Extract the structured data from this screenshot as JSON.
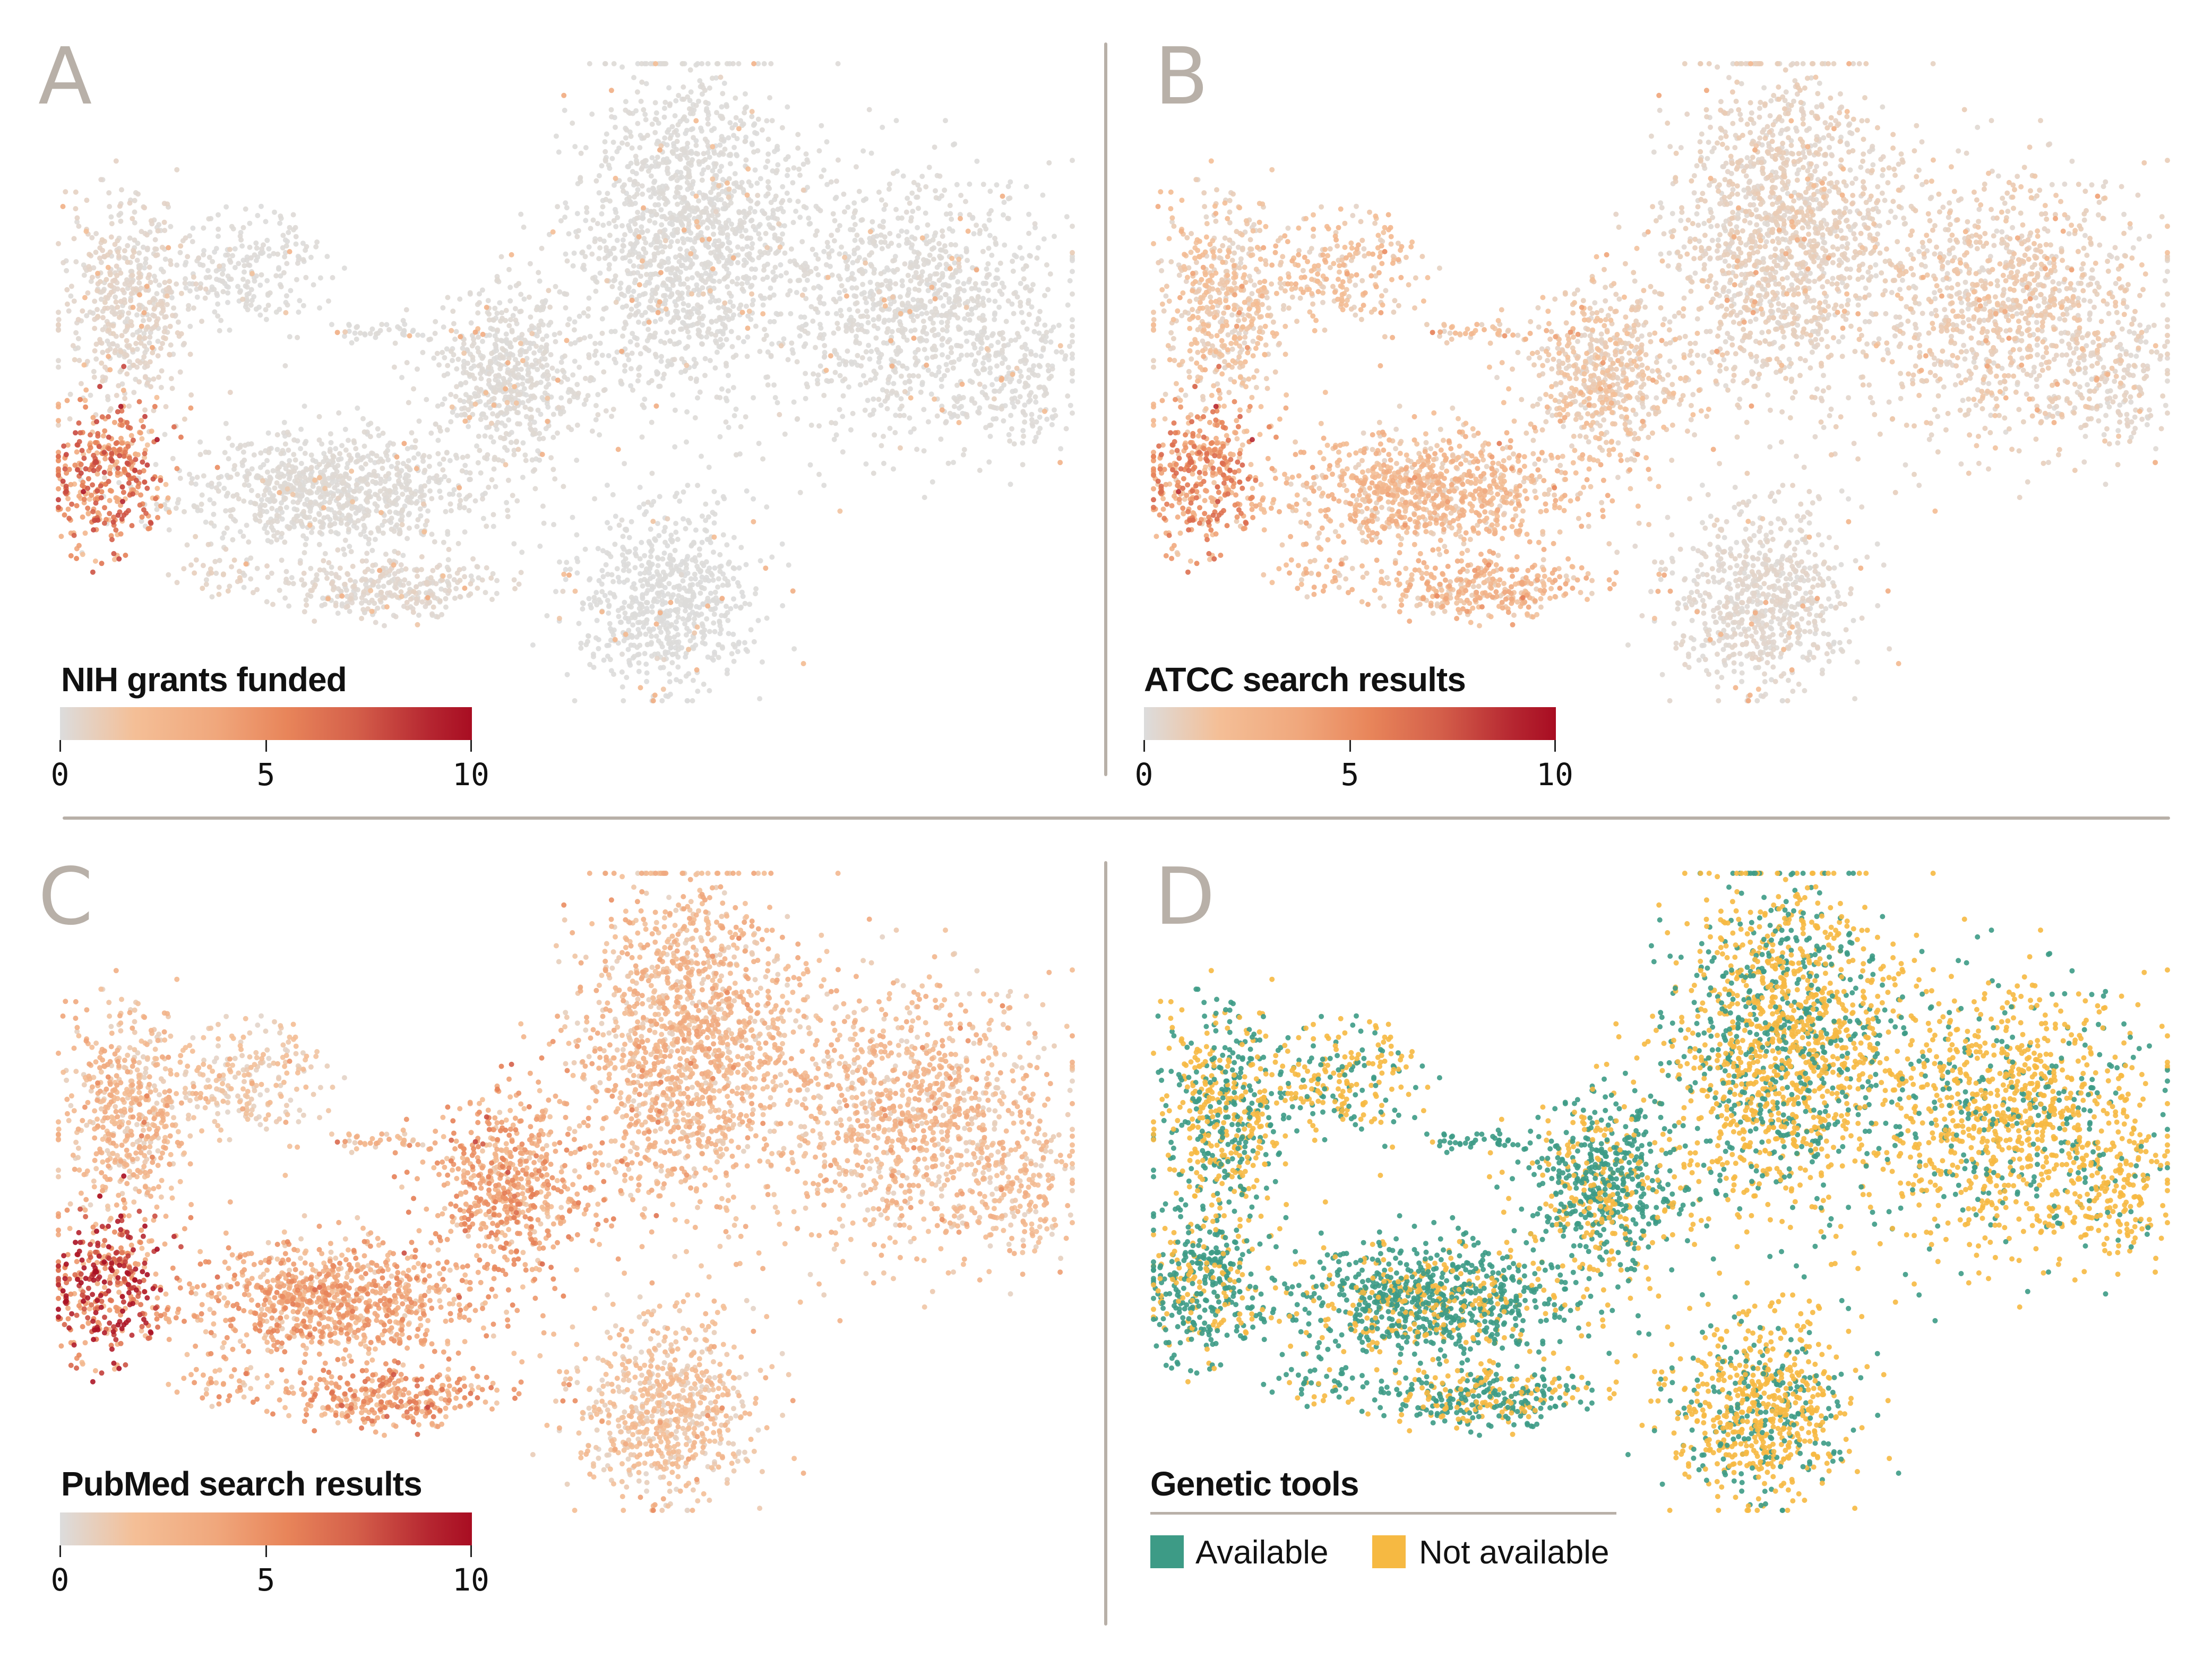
{
  "chart_data": {
    "type": "scatter",
    "description_kind": "embedding-scatter-4-panels",
    "embedding": {
      "x_range": [
        0,
        100
      ],
      "y_range": [
        0,
        100
      ],
      "clusters": [
        {
          "name": "left-top",
          "cx": 7,
          "cy": 38,
          "sx": 3.2,
          "sy": 8.5,
          "n": 520
        },
        {
          "name": "left-arm",
          "cx": 19,
          "cy": 33,
          "sx": 4.0,
          "sy": 4.5,
          "n": 220
        },
        {
          "name": "left-pocket",
          "cx": 5,
          "cy": 64,
          "sx": 2.8,
          "sy": 5.5,
          "n": 360
        },
        {
          "name": "mid-band",
          "cx": 27,
          "cy": 67,
          "sx": 7.5,
          "sy": 4.2,
          "n": 900
        },
        {
          "name": "low-band",
          "cx": 33,
          "cy": 82,
          "sx": 5.5,
          "sy": 2.3,
          "n": 330
        },
        {
          "name": "low-dots",
          "cx": 16,
          "cy": 80,
          "sx": 2.5,
          "sy": 2.0,
          "n": 40
        },
        {
          "name": "mid-cluster",
          "cx": 45,
          "cy": 49,
          "sx": 4.0,
          "sy": 7.0,
          "n": 620
        },
        {
          "name": "bridge",
          "cx": 32,
          "cy": 42,
          "sx": 3.0,
          "sy": 0.8,
          "n": 40
        },
        {
          "name": "big-upper",
          "cx": 62,
          "cy": 28,
          "sx": 5.5,
          "sy": 13.0,
          "n": 1500
        },
        {
          "name": "right",
          "cx": 84,
          "cy": 38,
          "sx": 7.0,
          "sy": 10.0,
          "n": 1100
        },
        {
          "name": "right-tail",
          "cx": 95,
          "cy": 50,
          "sx": 3.5,
          "sy": 5.5,
          "n": 160
        },
        {
          "name": "lower-mid",
          "cx": 60,
          "cy": 84,
          "sx": 4.5,
          "sy": 7.0,
          "n": 700
        }
      ]
    },
    "panels": [
      {
        "id": "A",
        "letter": "A",
        "color_mode": "continuous",
        "legend_title": "NIH grants funded",
        "value_range": [
          0,
          10
        ],
        "ticks": [
          "0",
          "5",
          "10"
        ],
        "cluster_mean_values": [
          0.4,
          0.1,
          4.5,
          0.15,
          0.3,
          0.5,
          0.15,
          0.1,
          0.1,
          0.12,
          0.1,
          0.05
        ]
      },
      {
        "id": "B",
        "letter": "B",
        "color_mode": "continuous",
        "legend_title": "ATCC search results",
        "value_range": [
          0,
          10
        ],
        "ticks": [
          "0",
          "5",
          "10"
        ],
        "cluster_mean_values": [
          1.2,
          1.5,
          3.8,
          1.8,
          2.0,
          1.8,
          1.0,
          1.6,
          0.6,
          0.8,
          0.4,
          0.3
        ]
      },
      {
        "id": "C",
        "letter": "C",
        "color_mode": "continuous",
        "legend_title": "PubMed search results",
        "value_range": [
          0,
          10
        ],
        "ticks": [
          "0",
          "5",
          "10"
        ],
        "cluster_mean_values": [
          2.0,
          1.2,
          6.0,
          3.0,
          3.5,
          2.5,
          3.2,
          2.2,
          2.0,
          1.8,
          1.6,
          1.4
        ]
      },
      {
        "id": "D",
        "letter": "D",
        "color_mode": "categorical",
        "legend_title": "Genetic tools",
        "categories": [
          {
            "label": "Available",
            "color": "#3d9b86"
          },
          {
            "label": "Not available",
            "color": "#f6b942"
          }
        ],
        "cluster_available_fraction": [
          0.45,
          0.35,
          0.75,
          0.7,
          0.55,
          0.7,
          0.6,
          0.9,
          0.35,
          0.25,
          0.1,
          0.3
        ]
      }
    ],
    "colorscale": [
      "#dcdcdc",
      "#f4bf97",
      "#f0a77c",
      "#e8855a",
      "#d45f4a",
      "#b52530",
      "#a80d22"
    ],
    "grid": false
  }
}
